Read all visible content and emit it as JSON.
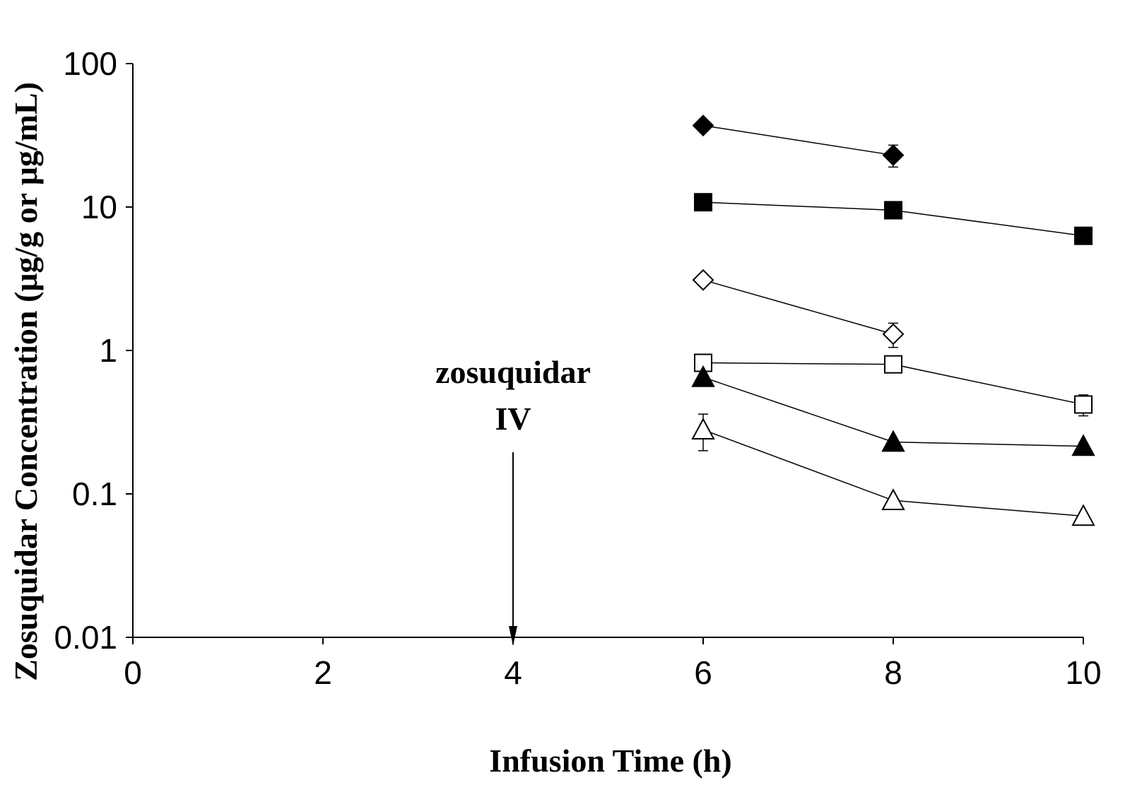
{
  "chart_data": {
    "type": "scatter",
    "title": "",
    "xlabel": "Infusion Time (h)",
    "ylabel": "Zosuquidar Concentration (μg/g or μg/mL)",
    "x_ticks": [
      0,
      2,
      4,
      6,
      8,
      10
    ],
    "y_ticks": [
      0.01,
      0.1,
      1,
      10,
      100
    ],
    "y_tick_labels": [
      "0.01",
      "0.1",
      "1",
      "10",
      "100"
    ],
    "xlim": [
      0,
      10
    ],
    "ylim": [
      0.01,
      100
    ],
    "y_scale": "log",
    "grid": false,
    "legend": "none",
    "annotation": {
      "lines": [
        "zosuquidar",
        "IV"
      ],
      "x": 4
    },
    "series": [
      {
        "marker": "filled-diamond",
        "x": [
          6,
          8
        ],
        "y": [
          37,
          23
        ],
        "err": [
          0,
          4
        ]
      },
      {
        "marker": "filled-square",
        "x": [
          6,
          8,
          10
        ],
        "y": [
          10.8,
          9.5,
          6.3
        ],
        "err": [
          0,
          0,
          0
        ]
      },
      {
        "marker": "open-diamond",
        "x": [
          6,
          8
        ],
        "y": [
          3.1,
          1.3
        ],
        "err": [
          0,
          0.25
        ]
      },
      {
        "marker": "open-square",
        "x": [
          6,
          8,
          10
        ],
        "y": [
          0.82,
          0.8,
          0.42
        ],
        "err": [
          0,
          0.1,
          0.07
        ]
      },
      {
        "marker": "filled-triangle",
        "x": [
          6,
          8,
          10
        ],
        "y": [
          0.65,
          0.23,
          0.215
        ],
        "err": [
          0,
          0,
          0
        ]
      },
      {
        "marker": "open-triangle",
        "x": [
          6,
          8,
          10
        ],
        "y": [
          0.28,
          0.09,
          0.07
        ],
        "err": [
          0.08,
          0,
          0
        ]
      }
    ]
  }
}
